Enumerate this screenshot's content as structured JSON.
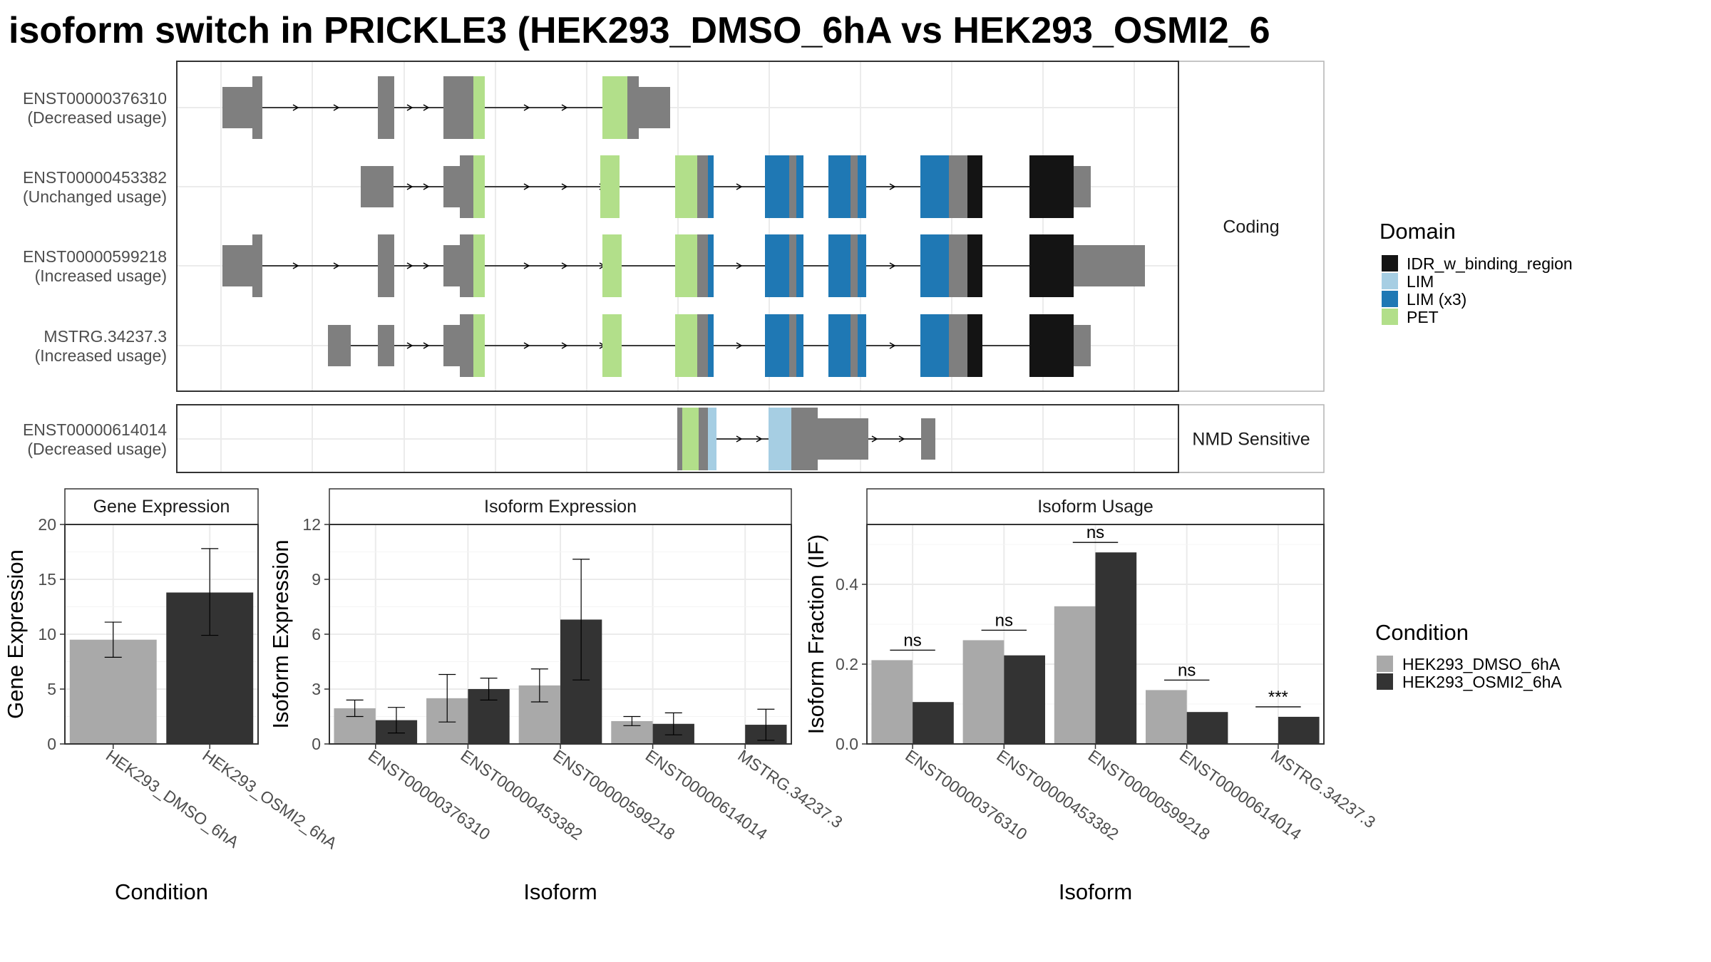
{
  "title": "isoform switch in PRICKLE3 (HEK293_DMSO_6hA vs HEK293_OSMI2_6",
  "colors": {
    "IDR_w_binding_region": "#141414",
    "LIM": "#a6cee3",
    "LIM (x3)": "#1f78b4",
    "PET": "#b2df8a",
    "exon": "#7f7f7f",
    "HEK293_DMSO_6hA": "#a9a9a9",
    "HEK293_OSMI2_6hA": "#333333"
  },
  "transcripts": {
    "coding_panel_label": "Coding",
    "nmd_panel_label": "NMD Sensitive",
    "rows": [
      {
        "id": "ENST00000376310",
        "status": "(Decreased usage)",
        "panel": "coding"
      },
      {
        "id": "ENST00000453382",
        "status": "(Unchanged usage)",
        "panel": "coding"
      },
      {
        "id": "ENST00000599218",
        "status": "(Increased usage)",
        "panel": "coding"
      },
      {
        "id": "MSTRG.34237.3",
        "status": "(Increased usage)",
        "panel": "coding"
      },
      {
        "id": "ENST00000614014",
        "status": "(Decreased usage)",
        "panel": "nmd"
      }
    ]
  },
  "legend_domain": {
    "title": "Domain",
    "items": [
      "IDR_w_binding_region",
      "LIM",
      "LIM (x3)",
      "PET"
    ]
  },
  "legend_condition": {
    "title": "Condition",
    "items": [
      "HEK293_DMSO_6hA",
      "HEK293_OSMI2_6hA"
    ]
  },
  "chart_data": [
    {
      "type": "bar",
      "title": "Gene Expression",
      "xlabel": "Condition",
      "ylabel": "Gene Expression",
      "categories": [
        "HEK293_DMSO_6hA",
        "HEK293_OSMI2_6hA"
      ],
      "values": [
        9.5,
        13.8
      ],
      "error_low": [
        7.9,
        9.9
      ],
      "error_high": [
        11.1,
        17.8
      ],
      "ylim": [
        0,
        20
      ],
      "yticks": [
        "0",
        "5",
        "10",
        "15",
        "20"
      ]
    },
    {
      "type": "bar",
      "title": "Isoform Expression",
      "xlabel": "Isoform",
      "ylabel": "Isoform Expression",
      "categories": [
        "ENST00000376310",
        "ENST00000453382",
        "ENST00000599218",
        "ENST00000614014",
        "MSTRG.34237.3"
      ],
      "series": [
        {
          "name": "HEK293_DMSO_6hA",
          "values": [
            1.95,
            2.5,
            3.2,
            1.25,
            0.0
          ],
          "error_low": [
            1.5,
            1.2,
            2.3,
            1.0,
            0.0
          ],
          "error_high": [
            2.4,
            3.8,
            4.1,
            1.5,
            0.0
          ]
        },
        {
          "name": "HEK293_OSMI2_6hA",
          "values": [
            1.3,
            3.0,
            6.8,
            1.1,
            1.05
          ],
          "error_low": [
            0.6,
            2.4,
            3.5,
            0.5,
            0.2
          ],
          "error_high": [
            2.0,
            3.6,
            10.1,
            1.7,
            1.9
          ]
        }
      ],
      "ylim": [
        0,
        12
      ],
      "yticks": [
        "0",
        "3",
        "6",
        "9",
        "12"
      ]
    },
    {
      "type": "bar",
      "title": "Isoform Usage",
      "xlabel": "Isoform",
      "ylabel": "Isoform Fraction (IF)",
      "categories": [
        "ENST00000376310",
        "ENST00000453382",
        "ENST00000599218",
        "ENST00000614014",
        "MSTRG.34237.3"
      ],
      "series": [
        {
          "name": "HEK293_DMSO_6hA",
          "values": [
            0.21,
            0.26,
            0.345,
            0.135,
            0.0
          ]
        },
        {
          "name": "HEK293_OSMI2_6hA",
          "values": [
            0.105,
            0.222,
            0.48,
            0.08,
            0.068
          ]
        }
      ],
      "significance": [
        "ns",
        "ns",
        "ns",
        "ns",
        "***"
      ],
      "ylim": [
        0,
        0.55
      ],
      "yticks": [
        "0.0",
        "0.2",
        "0.4"
      ]
    }
  ]
}
